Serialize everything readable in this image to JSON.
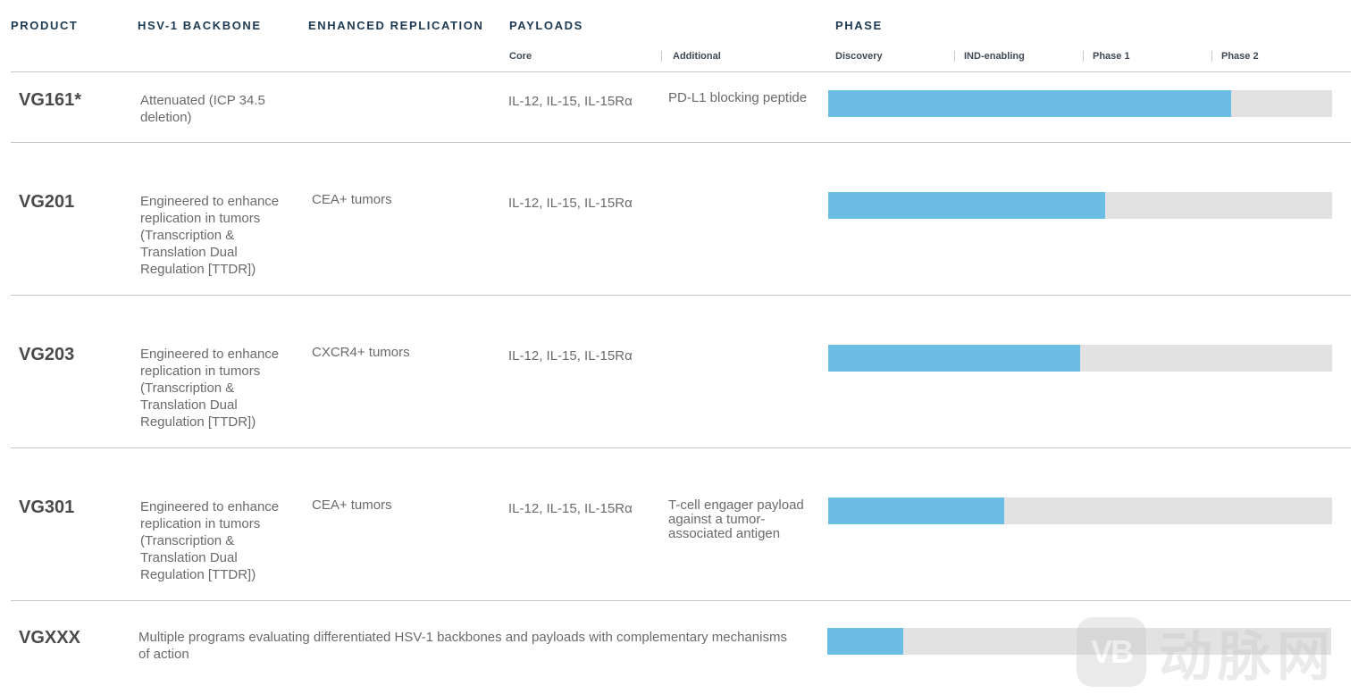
{
  "columns": {
    "product": "PRODUCT",
    "backbone": "HSV-1 BACKBONE",
    "replication": "ENHANCED REPLICATION",
    "payloads": "PAYLOADS",
    "phase": "PHASE"
  },
  "payload_subcolumns": {
    "core": "Core",
    "additional": "Additional"
  },
  "phases": [
    "Discovery",
    "IND-enabling",
    "Phase 1",
    "Phase 2"
  ],
  "rows": [
    {
      "product": "VG161*",
      "backbone": "Attenuated (ICP 34.5 deletion)",
      "replication": "",
      "core_payload": "IL-12, IL-15, IL-15Rα",
      "additional_payload": "PD-L1 blocking peptide",
      "progress_percent": 80
    },
    {
      "product": "VG201",
      "backbone": "Engineered to enhance replication in tumors (Transcription & Translation Dual Regulation [TTDR])",
      "replication": "CEA+ tumors",
      "core_payload": "IL-12, IL-15, IL-15Rα",
      "additional_payload": "",
      "progress_percent": 55
    },
    {
      "product": "VG203",
      "backbone": "Engineered to enhance replication in tumors (Transcription & Translation Dual Regulation [TTDR])",
      "replication": "CXCR4+ tumors",
      "core_payload": "IL-12, IL-15, IL-15Rα",
      "additional_payload": "",
      "progress_percent": 50
    },
    {
      "product": "VG301",
      "backbone": "Engineered to enhance replication in tumors (Transcription & Translation Dual Regulation [TTDR])",
      "replication": "CEA+ tumors",
      "core_payload": "IL-12, IL-15, IL-15Rα",
      "additional_payload": "T-cell engager payload against a tumor-associated antigen",
      "progress_percent": 35
    },
    {
      "product": "VGXXX",
      "description": "Multiple programs evaluating differentiated HSV-1 backbones and payloads with complementary mechanisms of action",
      "progress_percent": 15
    }
  ],
  "watermark": {
    "badge": "VB",
    "text": "动脉网"
  },
  "colors": {
    "header": "#1d3a52",
    "progress_fill": "#6cbde3",
    "progress_track": "#e2e2e2",
    "divider": "#c6c6c6"
  }
}
